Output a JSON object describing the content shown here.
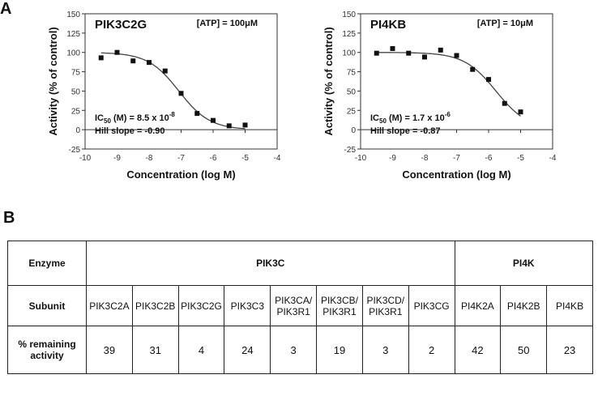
{
  "labels": {
    "panel_a": "A",
    "panel_b": "B"
  },
  "chart_data": [
    {
      "type": "scatter",
      "title": "PIK3C2G",
      "atp": "[ATP] = 100μM",
      "xlabel": "Concentration (log M)",
      "ylabel": "Activity (% of control)",
      "xlim": [
        -10,
        -4
      ],
      "ylim": [
        -25,
        150
      ],
      "xticks": [
        -10,
        -9,
        -8,
        -7,
        -6,
        -5,
        -4
      ],
      "yticks": [
        -25,
        0,
        25,
        50,
        75,
        100,
        125,
        150
      ],
      "points": [
        [
          -9.5,
          93
        ],
        [
          -9.0,
          100
        ],
        [
          -8.5,
          89
        ],
        [
          -8.0,
          87
        ],
        [
          -7.5,
          76
        ],
        [
          -7.0,
          47
        ],
        [
          -6.5,
          21
        ],
        [
          -6.0,
          12
        ],
        [
          -5.5,
          5
        ],
        [
          -5.0,
          6
        ]
      ],
      "fit": {
        "top": 100,
        "bottom": 0,
        "logIC50": -7.07,
        "hill": -0.9
      },
      "ic50_prefix": "IC",
      "ic50_sub": "50",
      "ic50_text": " (M) = 8.5 x 10",
      "ic50_exp": "-8",
      "hill_text": "Hill slope = -0.90"
    },
    {
      "type": "scatter",
      "title": "PI4KB",
      "atp": "[ATP] = 10μM",
      "xlabel": "Concentration (log M)",
      "ylabel": "Activity (% of control)",
      "xlim": [
        -10,
        -4
      ],
      "ylim": [
        -25,
        150
      ],
      "xticks": [
        -10,
        -9,
        -8,
        -7,
        -6,
        -5,
        -4
      ],
      "yticks": [
        -25,
        0,
        25,
        50,
        75,
        100,
        125,
        150
      ],
      "points": [
        [
          -9.5,
          99
        ],
        [
          -9.0,
          105
        ],
        [
          -8.5,
          99
        ],
        [
          -8.0,
          94
        ],
        [
          -7.5,
          103
        ],
        [
          -7.0,
          96
        ],
        [
          -6.5,
          78
        ],
        [
          -6.0,
          65
        ],
        [
          -5.5,
          34
        ],
        [
          -5.0,
          23
        ]
      ],
      "fit": {
        "top": 100,
        "bottom": 0,
        "logIC50": -5.77,
        "hill": -0.87
      },
      "ic50_prefix": "IC",
      "ic50_sub": "50",
      "ic50_text": " (M) = 1.7 x 10",
      "ic50_exp": "-6",
      "hill_text": "Hill slope = -0.87"
    }
  ],
  "table": {
    "enzyme_label": "Enzyme",
    "group1": "PIK3C",
    "group2": "PI4K",
    "subunit_label": "Subunit",
    "subunits": [
      {
        "line1": "PIK3C2A",
        "line2": ""
      },
      {
        "line1": "PIK3C2B",
        "line2": ""
      },
      {
        "line1": "PIK3C2G",
        "line2": ""
      },
      {
        "line1": "PIK3C3",
        "line2": ""
      },
      {
        "line1": "PIK3CA/",
        "line2": "PIK3R1"
      },
      {
        "line1": "PIK3CB/",
        "line2": "PIK3R1"
      },
      {
        "line1": "PIK3CD/",
        "line2": "PIK3R1"
      },
      {
        "line1": "PIK3CG",
        "line2": ""
      },
      {
        "line1": "PI4K2A",
        "line2": ""
      },
      {
        "line1": "PI4K2B",
        "line2": ""
      },
      {
        "line1": "PI4KB",
        "line2": ""
      }
    ],
    "activity_label_line1": "% remaining",
    "activity_label_line2": "activity",
    "activity": [
      "39",
      "31",
      "4",
      "24",
      "3",
      "19",
      "3",
      "2",
      "42",
      "50",
      "23"
    ]
  }
}
